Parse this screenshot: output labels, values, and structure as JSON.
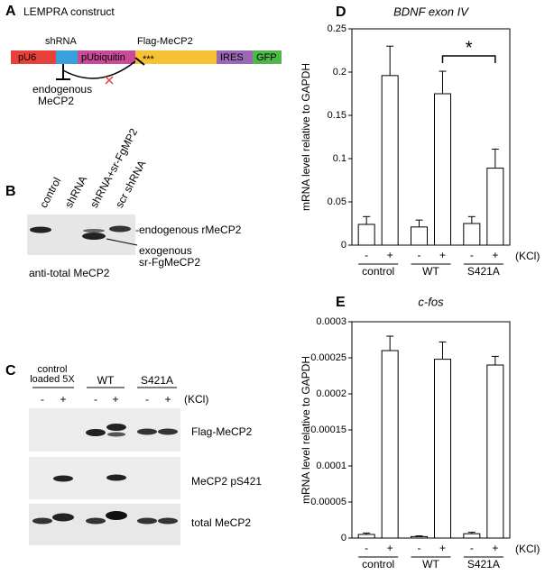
{
  "panels": {
    "A": {
      "label": "A",
      "title": "LEMPRA construct",
      "segments": [
        "pU6",
        "shRNA",
        "pUbiquitin",
        "Flag-MeCP2",
        "***",
        "IRES",
        "GFP"
      ],
      "target": [
        "endogenous",
        "MeCP2"
      ]
    },
    "B": {
      "label": "B",
      "lanes": [
        "control",
        "shRNA",
        "shRNA+sr-FgMP2",
        "scr shRNA"
      ],
      "bands": [
        "-endogenous rMeCP2",
        "exogenous",
        "sr-FgMeCP2"
      ],
      "caption": "anti-total MeCP2"
    },
    "C": {
      "label": "C",
      "groups": [
        "control",
        "loaded 5X",
        "WT",
        "S421A"
      ],
      "lanes": [
        "-",
        "+",
        "-",
        "+",
        "-",
        "+"
      ],
      "note": "(KCl)",
      "rows": [
        "Flag-MeCP2",
        "MeCP2 pS421",
        "total MeCP2"
      ]
    }
  },
  "chart_data": [
    {
      "type": "bar",
      "label": "D",
      "title": "BDNF exon IV",
      "ylabel": "mRNA level relative to GAPDH",
      "categories": [
        "-",
        "+",
        "-",
        "+",
        "-",
        "+"
      ],
      "groups": [
        "control",
        "WT",
        "S421A"
      ],
      "group_note": "(KCl)",
      "values": [
        0.024,
        0.196,
        0.021,
        0.175,
        0.025,
        0.089
      ],
      "errors": [
        0.009,
        0.034,
        0.008,
        0.026,
        0.008,
        0.022
      ],
      "ylim": [
        0,
        0.25
      ],
      "yticks": [
        0,
        0.05,
        0.1,
        0.15,
        0.2,
        0.25
      ],
      "color": "#ffffff",
      "annotation": "*"
    },
    {
      "type": "bar",
      "label": "E",
      "title": "c-fos",
      "ylabel": "mRNA level relative to GAPDH",
      "categories": [
        "-",
        "+",
        "-",
        "+",
        "-",
        "+"
      ],
      "groups": [
        "control",
        "WT",
        "S421A"
      ],
      "group_note": "(KCl)",
      "values": [
        5e-06,
        0.00026,
        2e-06,
        0.000248,
        6e-06,
        0.00024
      ],
      "errors": [
        2e-06,
        2e-05,
        1e-06,
        2.4e-05,
        2e-06,
        1.2e-05
      ],
      "ylim": [
        0,
        0.0003
      ],
      "yticks": [
        0,
        5e-05,
        0.0001,
        0.00015,
        0.0002,
        0.00025,
        0.0003
      ],
      "color": "#ffffff"
    }
  ]
}
